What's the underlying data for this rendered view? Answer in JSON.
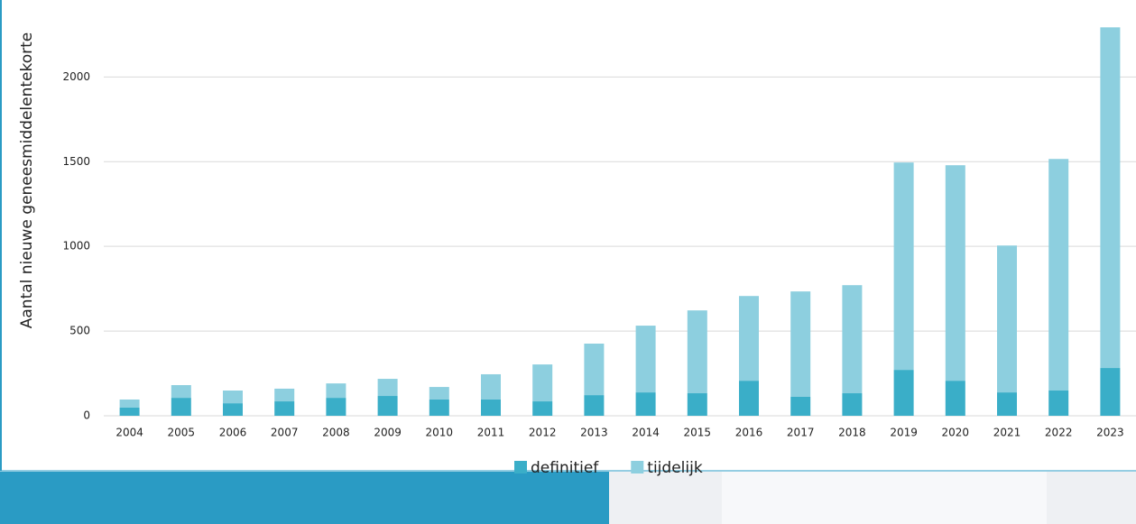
{
  "chart_data": {
    "type": "bar",
    "stacked": true,
    "ylabel": "Aantal nieuwe geneesmiddelentekorte",
    "categories": [
      "2004",
      "2005",
      "2006",
      "2007",
      "2008",
      "2009",
      "2010",
      "2011",
      "2012",
      "2013",
      "2014",
      "2015",
      "2016",
      "2017",
      "2018",
      "2019",
      "2020",
      "2021",
      "2022",
      "2023"
    ],
    "series": [
      {
        "name": "definitief",
        "color": "#3aaec8",
        "values": [
          48,
          106,
          74,
          85,
          106,
          117,
          96,
          96,
          85,
          122,
          138,
          133,
          207,
          112,
          133,
          271,
          207,
          138,
          149,
          282
        ]
      },
      {
        "name": "tijdelijk",
        "color": "#8dcfdf",
        "values": [
          48,
          75,
          75,
          75,
          85,
          101,
          74,
          149,
          218,
          304,
          394,
          489,
          500,
          622,
          638,
          1224,
          1272,
          867,
          1367,
          2011
        ]
      }
    ],
    "ylim": [
      0,
      2300
    ],
    "yticks": [
      0,
      500,
      1000,
      1500,
      2000
    ],
    "grid": true,
    "legend": "bottom"
  }
}
